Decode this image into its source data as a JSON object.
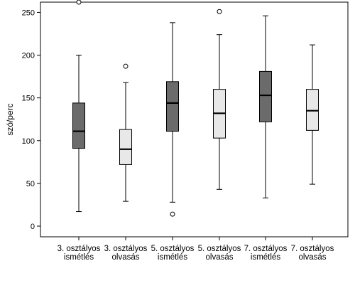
{
  "chart_data": {
    "type": "boxplot",
    "ylabel": "szó/perc",
    "ylim": [
      0,
      262
    ],
    "yticks": [
      0,
      50,
      100,
      150,
      200,
      250
    ],
    "grid": false,
    "categories": [
      [
        "3. osztályos",
        "ismétlés"
      ],
      [
        "3. osztályos",
        "olvasás"
      ],
      [
        "5. osztályos",
        "ismétlés"
      ],
      [
        "5. osztályos",
        "olvasás"
      ],
      [
        "7. osztályos",
        "ismétlés"
      ],
      [
        "7. osztályos",
        "olvasás"
      ]
    ],
    "boxes": [
      {
        "min": 17,
        "q1": 91,
        "median": 111,
        "q3": 144,
        "max": 200,
        "outliers": [
          262
        ],
        "fill": "#6b6b6b"
      },
      {
        "min": 29,
        "q1": 72,
        "median": 90,
        "q3": 113,
        "max": 168,
        "outliers": [
          187
        ],
        "fill": "#e8e8e8"
      },
      {
        "min": 28,
        "q1": 111,
        "median": 144,
        "q3": 169,
        "max": 238,
        "outliers": [
          14
        ],
        "fill": "#6b6b6b"
      },
      {
        "min": 43,
        "q1": 103,
        "median": 132,
        "q3": 160,
        "max": 224,
        "outliers": [
          251
        ],
        "fill": "#e8e8e8"
      },
      {
        "min": 33,
        "q1": 122,
        "median": 153,
        "q3": 181,
        "max": 246,
        "outliers": [],
        "fill": "#6b6b6b"
      },
      {
        "min": 49,
        "q1": 112,
        "median": 135,
        "q3": 160,
        "max": 212,
        "outliers": [],
        "fill": "#e8e8e8"
      }
    ]
  }
}
